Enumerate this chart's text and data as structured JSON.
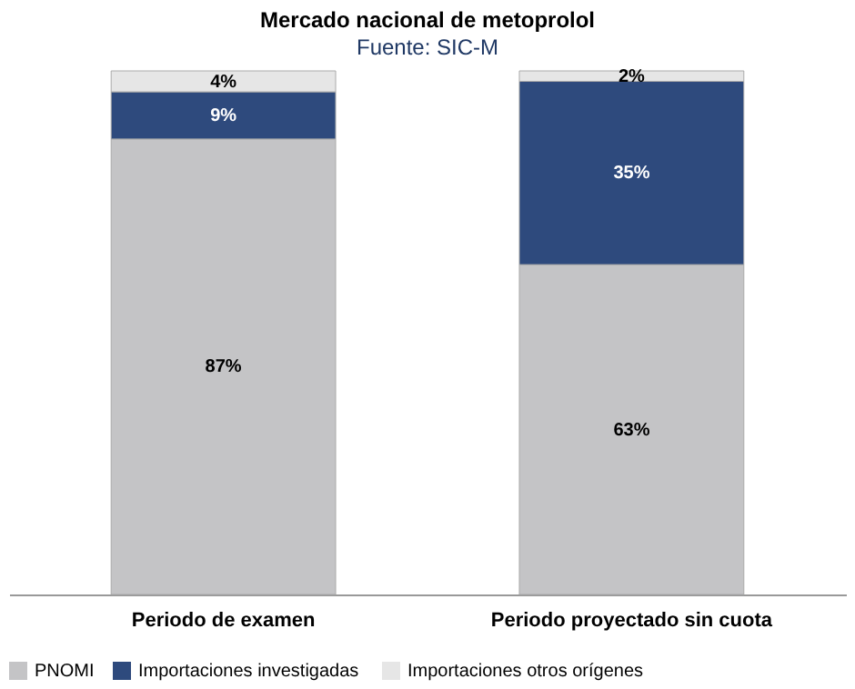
{
  "chart_data": {
    "type": "bar",
    "stacked": true,
    "title": "Mercado nacional de metoprolol",
    "categories": [
      "Periodo de examen",
      "Periodo proyectado sin cuota"
    ],
    "series": [
      {
        "name": "PNOMI",
        "color": "#c4c4c6",
        "values": [
          87,
          63
        ],
        "value_labels": [
          "87%",
          "63%"
        ]
      },
      {
        "name": "Importaciones  investigadas",
        "color": "#2e4a7d",
        "values": [
          9,
          35
        ],
        "value_labels": [
          "9%",
          "35%"
        ]
      },
      {
        "name": "Importaciones otros orígenes",
        "color": "#e6e6e6",
        "values": [
          4,
          2
        ],
        "value_labels": [
          "4%",
          "2%"
        ]
      }
    ],
    "ylim": [
      0,
      100
    ],
    "tick_labels": "x",
    "legend": "bottom",
    "annotations": [
      "Fuente: SIC-M"
    ]
  }
}
